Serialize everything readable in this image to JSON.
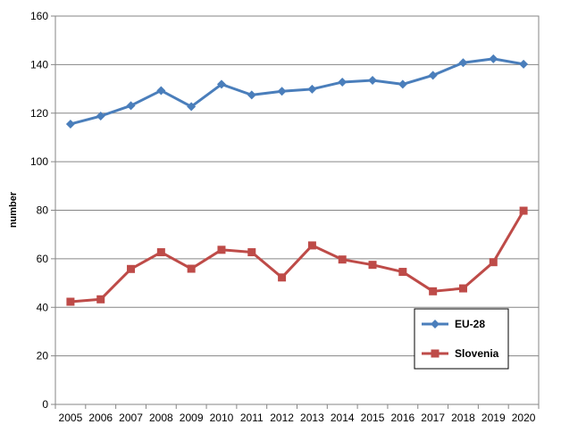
{
  "chart_data": {
    "type": "line",
    "title": "",
    "xlabel": "",
    "ylabel": "number",
    "ylim": [
      0,
      160
    ],
    "yticks": [
      "0",
      "20",
      "40",
      "60",
      "80",
      "100",
      "120",
      "140",
      "160"
    ],
    "x": [
      "2005",
      "2006",
      "2007",
      "2008",
      "2009",
      "2010",
      "2011",
      "2012",
      "2013",
      "2014",
      "2015",
      "2016",
      "2017",
      "2018",
      "2019",
      "2020"
    ],
    "grid": "horizontal",
    "legend_position": "bottom-right",
    "series": [
      {
        "name": "EU-28",
        "color": "#4a7ebb",
        "marker": "diamond",
        "values": [
          115.5,
          118.8,
          123.1,
          129.3,
          122.7,
          131.9,
          127.5,
          129.0,
          129.9,
          132.8,
          133.5,
          131.9,
          135.6,
          140.8,
          142.4,
          140.2
        ]
      },
      {
        "name": "Slovenia",
        "color": "#be4b48",
        "marker": "square",
        "values": [
          42.3,
          43.3,
          55.8,
          62.7,
          55.9,
          63.7,
          62.7,
          52.3,
          65.5,
          59.7,
          57.5,
          54.6,
          46.6,
          47.8,
          58.6,
          79.8
        ]
      }
    ]
  }
}
